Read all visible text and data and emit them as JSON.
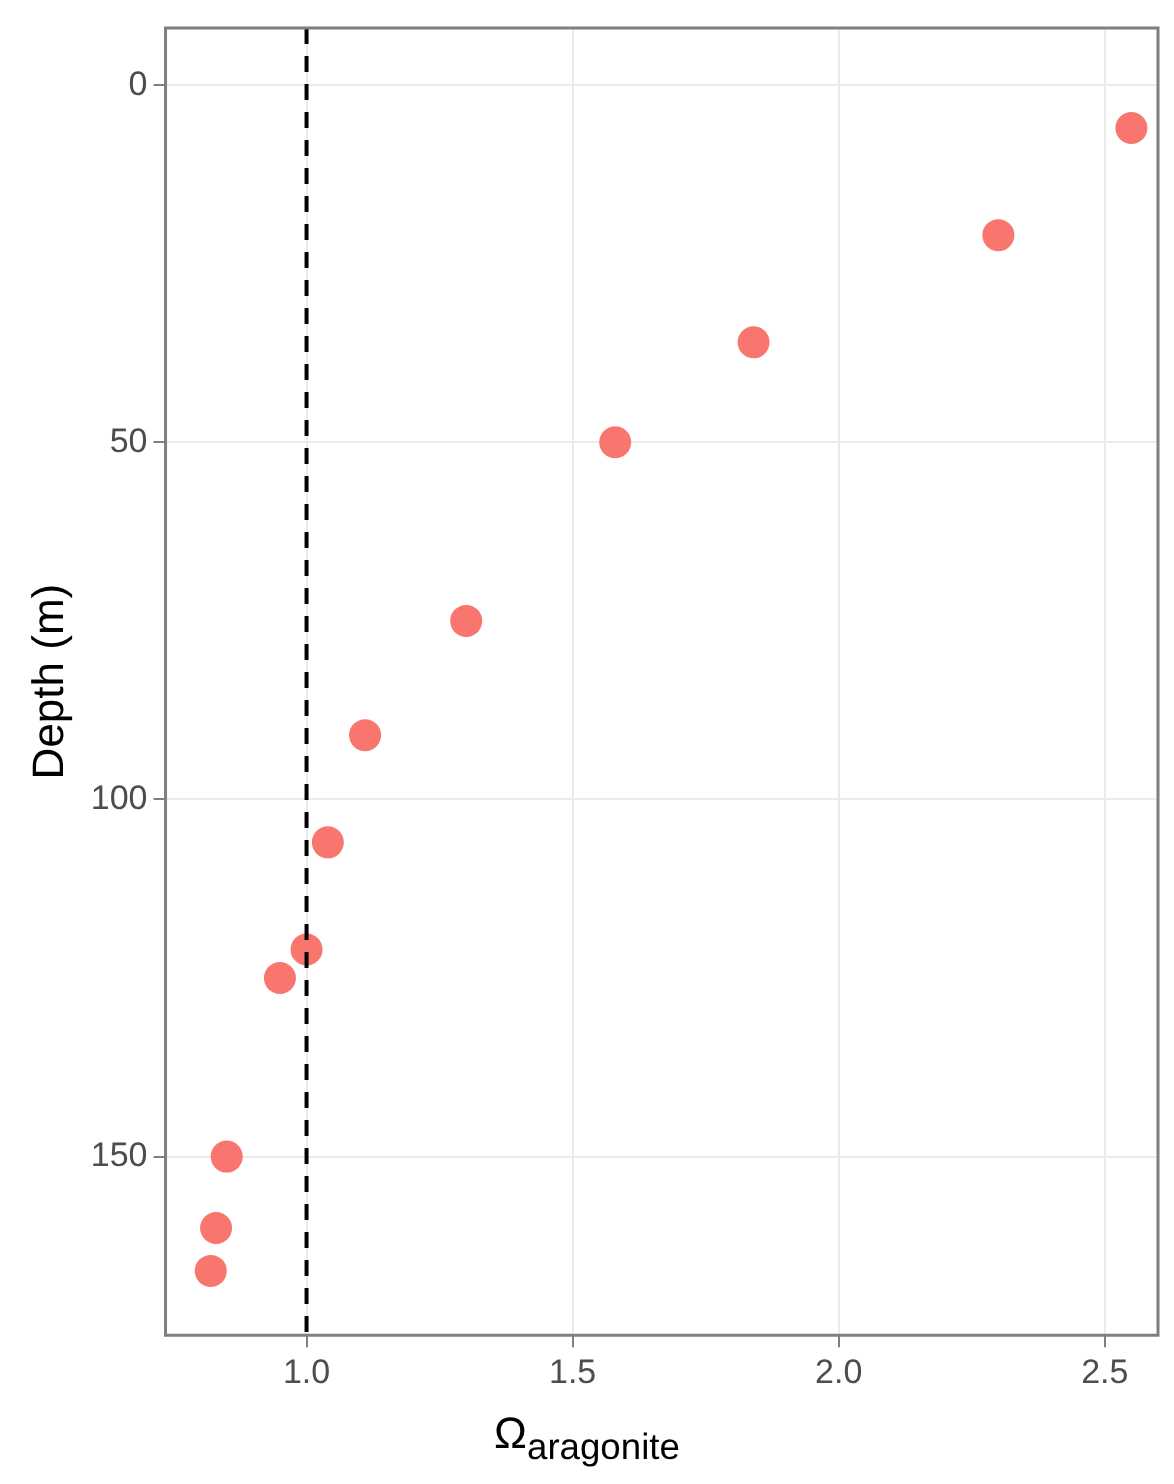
{
  "chart_data": {
    "type": "scatter",
    "xlabel": "Ω$_{aragonite}$",
    "ylabel": "Depth (m)",
    "x": [
      2.55,
      2.3,
      1.84,
      1.58,
      1.3,
      1.11,
      1.04,
      1.0,
      0.95,
      0.85,
      0.83,
      0.82
    ],
    "series": [
      {
        "color": "#f8766d",
        "values": [
          6,
          21,
          36,
          50,
          75,
          91,
          106,
          121,
          125,
          150,
          160,
          166
        ]
      }
    ],
    "xlim": [
      0.735,
      2.6
    ],
    "xticks": [
      {
        "value": 1,
        "label": "1.0"
      },
      {
        "value": 1.5,
        "label": "1.5"
      },
      {
        "value": 2,
        "label": "2.0"
      },
      {
        "value": 2.5,
        "label": "2.5"
      }
    ],
    "ylim": [
      175,
      -8
    ],
    "yticks": [
      0,
      50,
      100,
      150
    ],
    "ref_lines": [
      {
        "axis": "x",
        "value": 1,
        "color": "#000000",
        "line_style": "dashed"
      }
    ],
    "grid": true,
    "legend": false,
    "marker": "circle"
  }
}
